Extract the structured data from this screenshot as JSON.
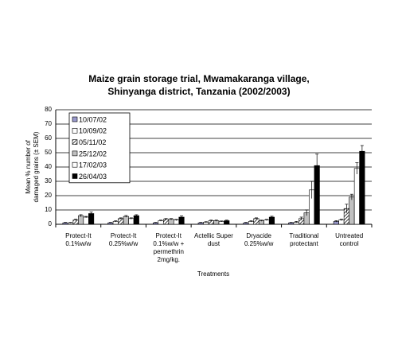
{
  "chart_data": {
    "type": "bar",
    "title": [
      "Maize grain storage trial, Mwamakaranga village,",
      "Shinyanga district, Tanzania (2002/2003)"
    ],
    "y_label": [
      "Mean % number of",
      "damaged grains (± SEM)"
    ],
    "x_label": "Treatments",
    "categories": [
      "Protect-It\n0.1%w/w",
      "Protect-It\n0.25%w/w",
      "Protect-It\n0.1%w/w +\npermethrin\n2mg/kg.",
      "Actellic Super\ndust",
      "Dryacide\n0.25%w/w",
      "Traditional\nprotectant",
      "Untreated\ncontrol"
    ],
    "series": [
      {
        "name": "10/07/02",
        "color": "#9999cc",
        "values": [
          1,
          1,
          1,
          1,
          1,
          1,
          2
        ],
        "errors": [
          0.3,
          0.3,
          0.3,
          0.3,
          0.3,
          0.3,
          0.5
        ]
      },
      {
        "name": "10/09/02",
        "color": "#ffffff",
        "values": [
          1,
          2,
          2.5,
          1.5,
          2,
          1.5,
          3
        ],
        "errors": [
          0.3,
          0.4,
          0.4,
          0.3,
          0.4,
          0.5,
          0.5
        ]
      },
      {
        "name": "05/11/02",
        "color": "#ffffff",
        "pattern": "diagonal",
        "values": [
          3,
          4,
          3.5,
          2.5,
          4,
          4,
          11
        ],
        "errors": [
          0.5,
          0.5,
          0.5,
          0.4,
          0.5,
          1,
          3
        ]
      },
      {
        "name": "25/12/02",
        "color": "#c0c0c0",
        "values": [
          6,
          5.5,
          3.5,
          2.5,
          2.5,
          8,
          19
        ],
        "errors": [
          0.7,
          0.6,
          0.5,
          0.4,
          0.4,
          2,
          2
        ]
      },
      {
        "name": "17/02/03",
        "color": "#ffffff",
        "values": [
          5,
          4,
          3,
          2,
          3,
          24,
          39
        ],
        "errors": [
          0.5,
          0.5,
          0.4,
          0.3,
          0.4,
          6,
          4
        ]
      },
      {
        "name": "26/04/03",
        "color": "#000000",
        "values": [
          7.5,
          6,
          5,
          2.5,
          5,
          41,
          51
        ],
        "errors": [
          1,
          0.7,
          0.8,
          0.4,
          0.6,
          8,
          4
        ]
      }
    ],
    "ylim": [
      0,
      80
    ],
    "yticks": [
      0,
      10,
      20,
      30,
      40,
      50,
      60,
      70,
      80
    ],
    "grid": true,
    "legend": "top-left"
  }
}
